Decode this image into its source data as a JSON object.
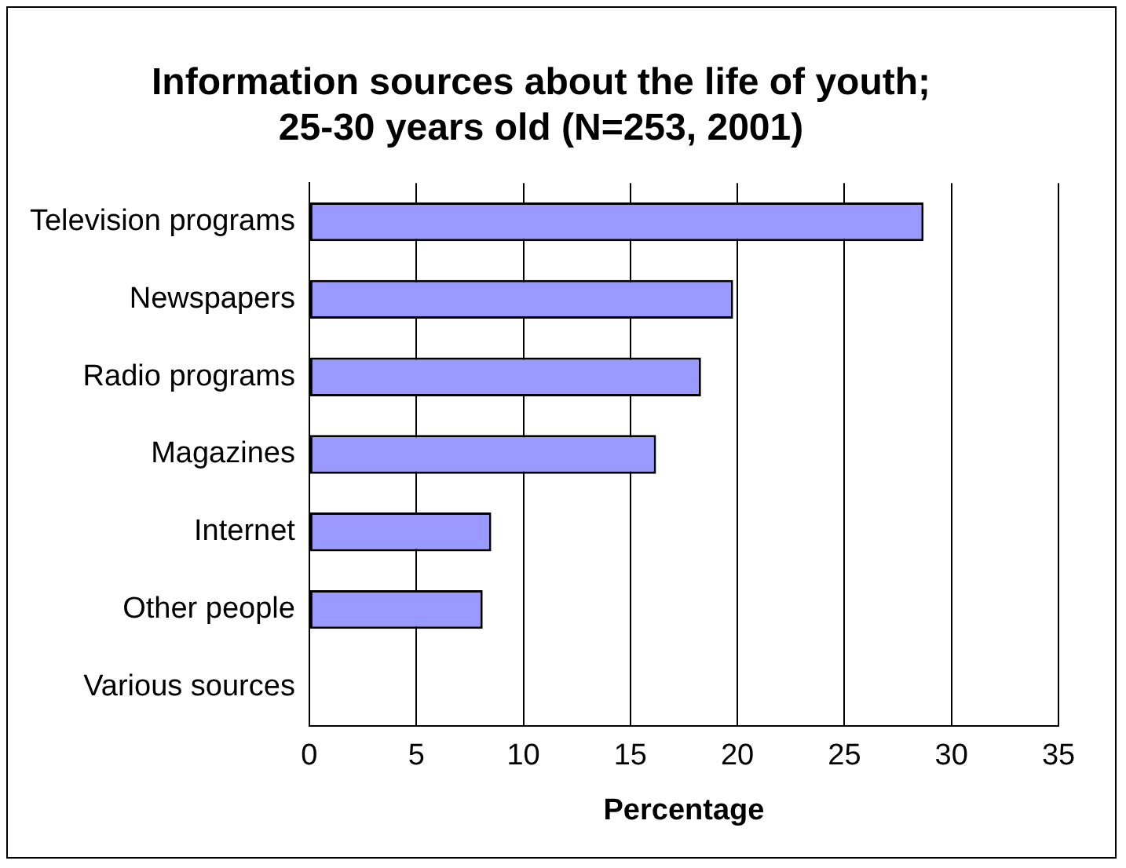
{
  "chart_data": {
    "type": "bar",
    "orientation": "horizontal",
    "title": "Information sources about the life of youth; 25-30 years old (N=253, 2001)",
    "xlabel": "Percentage",
    "categories": [
      "Television programs",
      "Newspapers",
      "Radio programs",
      "Magazines",
      "Internet",
      "Other people",
      "Various sources"
    ],
    "values": [
      28.7,
      19.8,
      18.3,
      16.2,
      8.5,
      8.1,
      0
    ],
    "color": "#9999ff",
    "xlim": [
      0,
      35
    ],
    "xticks": [
      0,
      5,
      10,
      15,
      20,
      25,
      30,
      35
    ],
    "grid": "x",
    "legend": false
  }
}
